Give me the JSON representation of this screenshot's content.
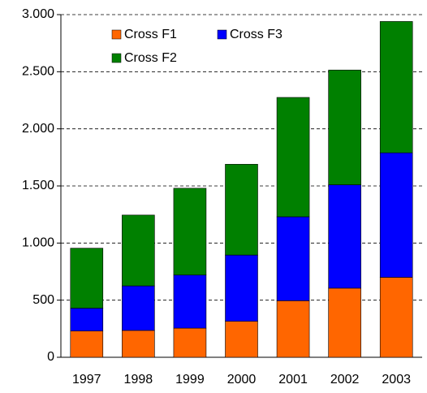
{
  "chart_data": {
    "type": "stacked_bar",
    "categories": [
      "1997",
      "1998",
      "1999",
      "2000",
      "2001",
      "2002",
      "2003"
    ],
    "series": [
      {
        "name": "Cross F1",
        "color": "#FF6600",
        "values": [
          230,
          235,
          255,
          315,
          495,
          605,
          700
        ]
      },
      {
        "name": "Cross F3",
        "color": "#0000FF",
        "values": [
          200,
          390,
          465,
          580,
          735,
          905,
          1090
        ]
      },
      {
        "name": "Cross F2",
        "color": "#008000",
        "values": [
          525,
          620,
          760,
          795,
          1045,
          1005,
          1150
        ]
      }
    ],
    "ylim": [
      0,
      3000
    ],
    "yticks": [
      0,
      500,
      {
        "value": 1000,
        "label": "1.000"
      },
      {
        "value": 1500,
        "label": "1.500"
      },
      {
        "value": 2000,
        "label": "2.000"
      },
      {
        "value": 2500,
        "label": "2.500"
      },
      {
        "value": 3000,
        "label": "3.000"
      }
    ],
    "grid": true
  }
}
